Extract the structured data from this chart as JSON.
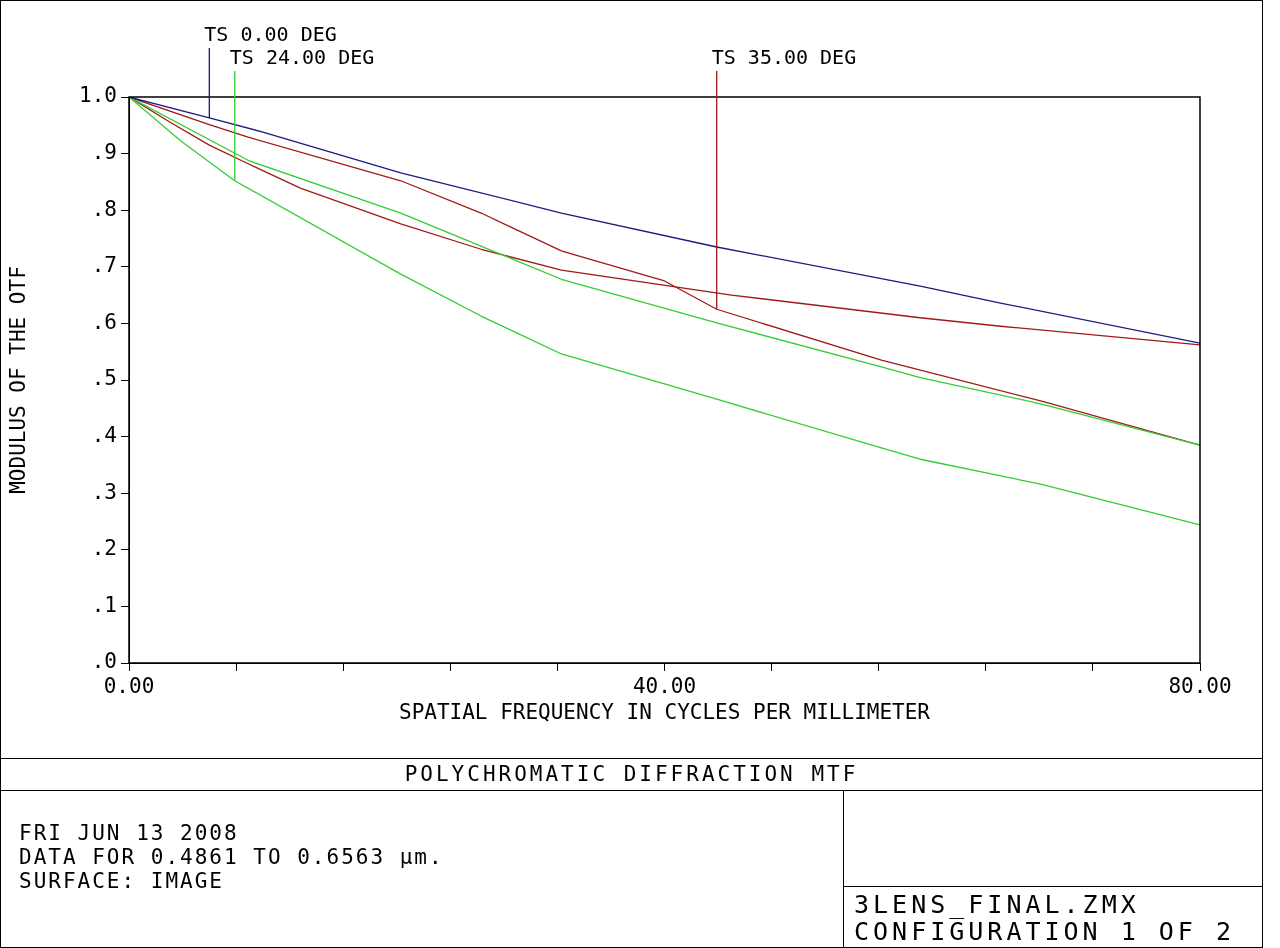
{
  "chart_data": {
    "type": "line",
    "title": "POLYCHROMATIC DIFFRACTION MTF",
    "xlabel": "SPATIAL FREQUENCY IN CYCLES PER MILLIMETER",
    "ylabel": "MODULUS OF THE OTF",
    "xlim": [
      0,
      80
    ],
    "xticks": [
      {
        "value": 0,
        "label": "0.00"
      },
      {
        "value": 8,
        "label": null
      },
      {
        "value": 16,
        "label": null
      },
      {
        "value": 24,
        "label": null
      },
      {
        "value": 32,
        "label": null
      },
      {
        "value": 40,
        "label": "40.00"
      },
      {
        "value": 48,
        "label": null
      },
      {
        "value": 56,
        "label": null
      },
      {
        "value": 64,
        "label": null
      },
      {
        "value": 72,
        "label": null
      },
      {
        "value": 80,
        "label": "80.00"
      }
    ],
    "ylim": [
      0,
      1
    ],
    "yticks": [
      {
        "value": 0,
        "label": ".0"
      },
      {
        "value": 0.1,
        "label": ".1"
      },
      {
        "value": 0.2,
        "label": ".2"
      },
      {
        "value": 0.3,
        "label": ".3"
      },
      {
        "value": 0.4,
        "label": ".4"
      },
      {
        "value": 0.5,
        "label": ".5"
      },
      {
        "value": 0.6,
        "label": ".6"
      },
      {
        "value": 0.7,
        "label": ".7"
      },
      {
        "value": 0.8,
        "label": ".8"
      },
      {
        "value": 0.9,
        "label": ".9"
      },
      {
        "value": 1,
        "label": "1.0"
      }
    ],
    "marker": "none",
    "line_style": "solid",
    "series": [
      {
        "color": "#1a1a80",
        "x": [
          0,
          6,
          10,
          20.3,
          32.3,
          43.9,
          59.1,
          65.1,
          80
        ],
        "values": [
          1.0,
          0.963,
          0.938,
          0.866,
          0.795,
          0.735,
          0.666,
          0.636,
          0.565
        ]
      },
      {
        "color": "#33cc33",
        "x": [
          0,
          3.9,
          7.9,
          20.3,
          26.3,
          32.3,
          40,
          43.9,
          56.2,
          59.1,
          68.1,
          80
        ],
        "values": [
          1.0,
          0.922,
          0.852,
          0.687,
          0.613,
          0.546,
          0.493,
          0.466,
          0.38,
          0.36,
          0.316,
          0.244
        ]
      },
      {
        "color": "#33cc33",
        "x": [
          0,
          9,
          20.3,
          32.3,
          43.9,
          56.2,
          59.1,
          68.1,
          80
        ],
        "values": [
          1.0,
          0.887,
          0.795,
          0.678,
          0.601,
          0.523,
          0.504,
          0.458,
          0.385
        ]
      },
      {
        "color": "#a01818",
        "x": [
          0,
          6,
          8.9,
          20.3,
          26.3,
          32.3,
          40,
          43.9,
          56.2,
          68.1,
          80
        ],
        "values": [
          1.0,
          0.951,
          0.929,
          0.852,
          0.795,
          0.728,
          0.675,
          0.625,
          0.535,
          0.463,
          0.385
        ]
      },
      {
        "color": "#a01818",
        "x": [
          0,
          3.1,
          6,
          8.9,
          12.8,
          20.3,
          26.3,
          32.3,
          45,
          59.1,
          65.1,
          80
        ],
        "values": [
          1.0,
          0.955,
          0.915,
          0.882,
          0.839,
          0.776,
          0.731,
          0.694,
          0.65,
          0.61,
          0.595,
          0.562
        ]
      }
    ],
    "annotations": [
      {
        "text": "TS 0.00 DEG",
        "x": 6,
        "y": 0.963
      },
      {
        "text": "TS 24.00 DEG",
        "x": 7.9,
        "y": 0.852
      },
      {
        "text": "TS 35.00 DEG",
        "x": 43.9,
        "y": 0.625
      },
      "FRI JUN 13 2008",
      "DATA FOR 0.4861 TO 0.6563 µm.",
      "SURFACE: IMAGE",
      "3LENS_FINAL.ZMX",
      "CONFIGURATION 1 OF 2"
    ]
  }
}
